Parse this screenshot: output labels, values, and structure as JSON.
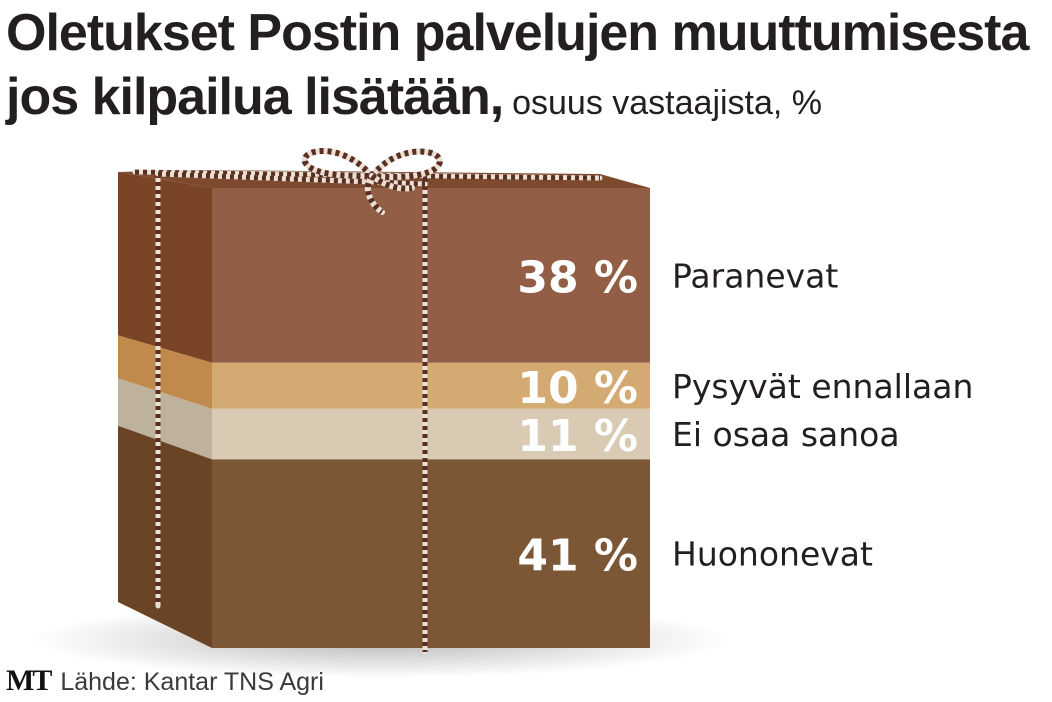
{
  "title": {
    "line1": "Oletukset Postin palvelujen muuttumisesta",
    "line2": "jos kilpailua lisätään,",
    "subtitle": "osuus vastaajista, %"
  },
  "source": {
    "logo": "MT",
    "text": "Lähde: Kantar TNS Agri"
  },
  "chart_data": {
    "type": "bar",
    "style": "stacked-100-percent, single column drawn as a gift box",
    "unit": "%",
    "categories": [
      "Paranevat",
      "Pysyvät ennallaan",
      "Ei osaa sanoa",
      "Huononevat"
    ],
    "values": [
      38,
      10,
      11,
      41
    ],
    "labels": [
      "38 %",
      "10 %",
      "11 %",
      "41 %"
    ],
    "colors": [
      "#925e45",
      "#d3aa72",
      "#d8cab3",
      "#7b5735"
    ],
    "side_colors": [
      "#7a4527",
      "#c08a4c",
      "#bfb29c",
      "#6a4424"
    ],
    "value_label_color": "#ffffff",
    "legend": "right"
  }
}
